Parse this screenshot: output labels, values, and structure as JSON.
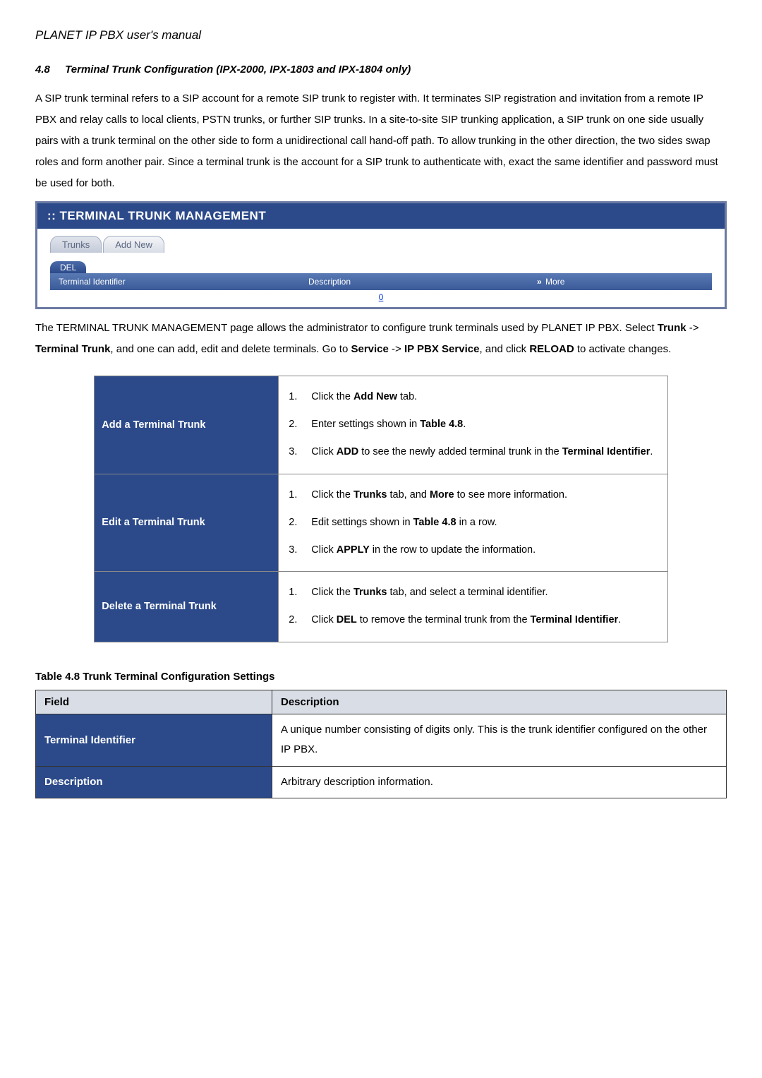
{
  "doc_title": "PLANET IP PBX user's manual",
  "section": {
    "number": "4.8",
    "title": "Terminal Trunk Configuration (IPX-2000, IPX-1803 and IPX-1804 only)"
  },
  "intro_para": "A SIP trunk terminal refers to a SIP account for a remote SIP trunk to register with. It terminates SIP registration and invitation from a remote IP PBX and relay calls to local clients, PSTN trunks, or further SIP trunks. In a site-to-site SIP trunking application, a SIP trunk on one side usually pairs with a trunk terminal on the other side to form a unidirectional call hand-off path. To allow trunking in the other direction, the two sides swap roles and form another pair. Since a terminal trunk is the account for a SIP trunk to authenticate with, exact the same identifier and password must be used for both.",
  "screenshot": {
    "title": ":: TERMINAL TRUNK MANAGEMENT",
    "tabs": {
      "trunks": "Trunks",
      "add_new": "Add New"
    },
    "sub_tab": "DEL",
    "columns": {
      "col1": "Terminal Identifier",
      "col2": "Description",
      "col3_arrow": "»",
      "col3": "More"
    },
    "row_link": "0"
  },
  "after_ss_para_pre1": "The TERMINAL TRUNK MANAGEMENT page allows the administrator to configure trunk terminals used by PLANET IP PBX. Select ",
  "after_ss_b1": "Trunk",
  "after_ss_arrow1": " -> ",
  "after_ss_b2": "Terminal Trunk",
  "after_ss_mid": ", and one can add, edit and delete terminals. Go to ",
  "after_ss_b3": "Service",
  "after_ss_arrow2": " -> ",
  "after_ss_b4": "IP PBX Service",
  "after_ss_mid2": ", and click ",
  "after_ss_b5": "RELOAD",
  "after_ss_end": " to activate changes.",
  "ops": {
    "add": {
      "label": "Add a Terminal Trunk",
      "items": [
        {
          "num": "1.",
          "pre": "Click the ",
          "b": "Add New",
          "post": " tab."
        },
        {
          "num": "2.",
          "pre": "Enter settings shown in ",
          "b": "Table 4.8",
          "post": "."
        },
        {
          "num": "3.",
          "pre": "Click ",
          "b": "ADD",
          "post": " to see the newly added terminal trunk in the ",
          "b2": "Terminal Identifier",
          "post2": "."
        }
      ]
    },
    "edit": {
      "label": "Edit a Terminal Trunk",
      "items": [
        {
          "num": "1.",
          "pre": "Click the ",
          "b": "Trunks",
          "post": " tab, and ",
          "b2": "More",
          "post2": " to see more information."
        },
        {
          "num": "2.",
          "pre": "Edit settings shown in ",
          "b": "Table 4.8",
          "post": " in a row."
        },
        {
          "num": "3.",
          "pre": "Click ",
          "b": "APPLY",
          "post": " in the row to update the information."
        }
      ]
    },
    "delete": {
      "label": "Delete a Terminal Trunk",
      "items": [
        {
          "num": "1.",
          "pre": "Click the ",
          "b": "Trunks",
          "post": " tab, and select a terminal identifier."
        },
        {
          "num": "2.",
          "pre": "Click ",
          "b": "DEL",
          "post": " to remove the terminal trunk from the ",
          "b2": "Terminal Identifier",
          "post2": "."
        }
      ]
    }
  },
  "settings_caption": "Table 4.8 Trunk Terminal Configuration Settings",
  "settings_headers": {
    "field": "Field",
    "description": "Description"
  },
  "settings_rows": [
    {
      "field": "Terminal Identifier",
      "desc": "A unique number consisting of digits only. This is the trunk identifier configured on the other IP PBX."
    },
    {
      "field": "Description",
      "desc": "Arbitrary description information."
    }
  ]
}
